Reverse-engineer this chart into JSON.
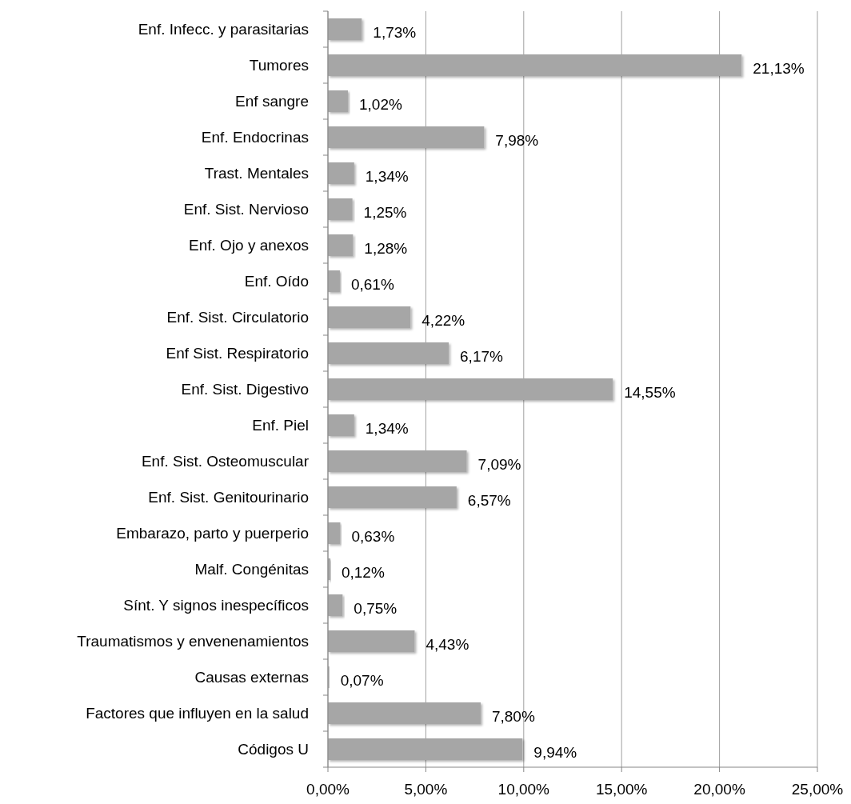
{
  "chart_data": {
    "type": "bar",
    "orientation": "horizontal",
    "categories": [
      "Enf. Infecc. y parasitarias",
      "Tumores",
      "Enf sangre",
      "Enf. Endocrinas",
      "Trast. Mentales",
      "Enf. Sist. Nervioso",
      "Enf. Ojo y anexos",
      "Enf. Oído",
      "Enf. Sist. Circulatorio",
      "Enf Sist. Respiratorio",
      "Enf. Sist. Digestivo",
      "Enf. Piel",
      "Enf. Sist. Osteomuscular",
      "Enf. Sist. Genitourinario",
      "Embarazo, parto y puerperio",
      "Malf. Congénitas",
      "Sínt. Y signos inespecíficos",
      "Traumatismos y envenenamientos",
      "Causas externas",
      "Factores que influyen en la salud",
      "Códigos U"
    ],
    "values": [
      1.73,
      21.13,
      1.02,
      7.98,
      1.34,
      1.25,
      1.28,
      0.61,
      4.22,
      6.17,
      14.55,
      1.34,
      7.09,
      6.57,
      0.63,
      0.12,
      0.75,
      4.43,
      0.07,
      7.8,
      9.94
    ],
    "value_labels": [
      "1,73%",
      "21,13%",
      "1,02%",
      "7,98%",
      "1,34%",
      "1,25%",
      "1,28%",
      "0,61%",
      "4,22%",
      "6,17%",
      "14,55%",
      "1,34%",
      "7,09%",
      "6,57%",
      "0,63%",
      "0,12%",
      "0,75%",
      "4,43%",
      "0,07%",
      "7,80%",
      "9,94%"
    ],
    "color": "#a6a6a6",
    "xlim": [
      0,
      25
    ],
    "xticks": [
      {
        "value": 0,
        "label": "0,00%"
      },
      {
        "value": 5,
        "label": "5,00%"
      },
      {
        "value": 10,
        "label": "10,00%"
      },
      {
        "value": 15,
        "label": "15,00%"
      },
      {
        "value": 20,
        "label": "20,00%"
      },
      {
        "value": 25,
        "label": "25,00%"
      }
    ],
    "grid": "x"
  }
}
